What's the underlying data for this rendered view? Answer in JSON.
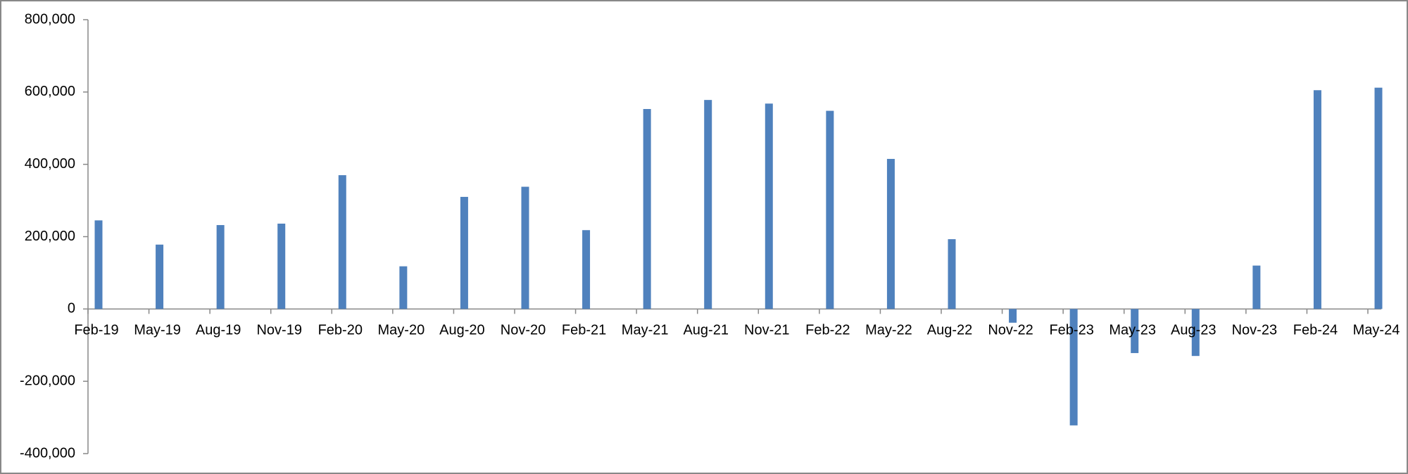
{
  "chart_data": {
    "type": "bar",
    "categories": [
      "Feb-19",
      "May-19",
      "Aug-19",
      "Nov-19",
      "Feb-20",
      "May-20",
      "Aug-20",
      "Nov-20",
      "Feb-21",
      "May-21",
      "Aug-21",
      "Nov-21",
      "Feb-22",
      "May-22",
      "Aug-22",
      "Nov-22",
      "Feb-23",
      "May-23",
      "Aug-23",
      "Nov-23",
      "Feb-24",
      "May-24"
    ],
    "values": [
      245000,
      178000,
      232000,
      236000,
      370000,
      118000,
      310000,
      338000,
      218000,
      553000,
      578000,
      568000,
      548000,
      415000,
      193000,
      -38000,
      -322000,
      -122000,
      -130000,
      120000,
      605000,
      612000
    ],
    "color": "#4f81bd",
    "ylim": [
      -400000,
      800000
    ],
    "yticks": [
      {
        "value": -400000,
        "label": "-400,000"
      },
      {
        "value": -200000,
        "label": "-200,000"
      },
      0,
      {
        "value": 200000,
        "label": "200,000"
      },
      {
        "value": 400000,
        "label": "400,000"
      },
      {
        "value": 600000,
        "label": "600,000"
      },
      {
        "value": 800000,
        "label": "800,000"
      }
    ],
    "grid": false
  }
}
